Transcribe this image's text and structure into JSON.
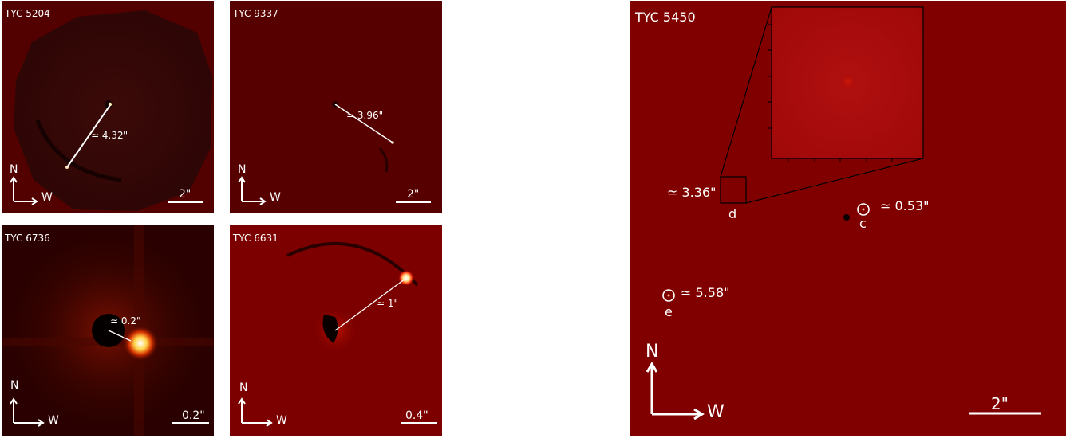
{
  "panels": [
    {
      "id": "tyc5204",
      "title": "TYC 5204",
      "separation": "≃ 4.32\"",
      "scale": "2\"",
      "north": "N",
      "west": "W",
      "bg": "#3a0504"
    },
    {
      "id": "tyc9337",
      "title": "TYC 9337",
      "separation": "≃ 3.96\"",
      "scale": "2\"",
      "north": "N",
      "west": "W",
      "bg": "#580000"
    },
    {
      "id": "tyc6736",
      "title": "TYC 6736",
      "separation": "≃ 0.2\"",
      "scale": "0.2\"",
      "north": "N",
      "west": "W",
      "bg": "#2a0100"
    },
    {
      "id": "tyc6631",
      "title": "TYC 6631",
      "separation": "≃ 1\"",
      "scale": "0.4\"",
      "north": "N",
      "west": "W",
      "bg": "#7a0000"
    }
  ],
  "main_panel": {
    "title": "TYC 5450",
    "bg": "#7f0000",
    "sources": [
      {
        "letter": "c",
        "separation": "≃ 0.53\""
      },
      {
        "letter": "d",
        "separation": "≃ 3.36\""
      },
      {
        "letter": "e",
        "separation": "≃ 5.58\""
      }
    ],
    "scale": "2\"",
    "north": "N",
    "west": "W"
  }
}
